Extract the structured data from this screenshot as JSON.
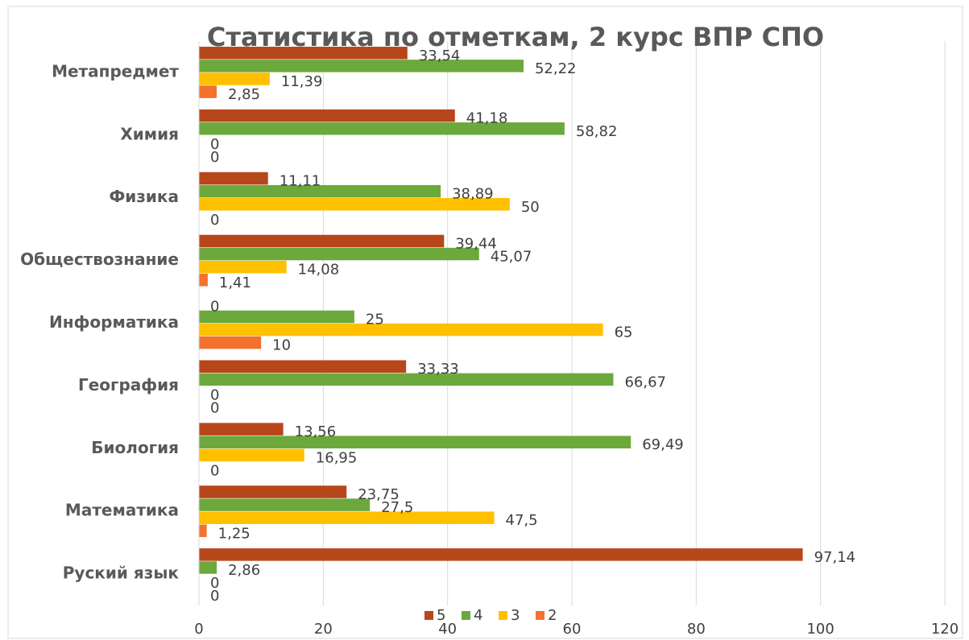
{
  "chart_data": {
    "type": "bar",
    "orientation": "horizontal",
    "title": "Статистика по отметкам, 2 курс ВПР СПО",
    "categories": [
      "Метапредмет",
      "Химия",
      "Физика",
      "Обществознание",
      "Информатика",
      "География",
      "Биология",
      "Математика",
      "Руский язык"
    ],
    "series": [
      {
        "name": "5",
        "color": "#b8461b",
        "values": [
          33.54,
          41.18,
          11.11,
          39.44,
          0,
          33.33,
          13.56,
          23.75,
          97.14
        ],
        "value_labels": [
          "33,54",
          "41,18",
          "11,11",
          "39,44",
          "0",
          "33,33",
          "13,56",
          "23,75",
          "97,14"
        ]
      },
      {
        "name": "4",
        "color": "#6ca83c",
        "values": [
          52.22,
          58.82,
          38.89,
          45.07,
          25,
          66.67,
          69.49,
          27.5,
          2.86
        ],
        "value_labels": [
          "52,22",
          "58,82",
          "38,89",
          "45,07",
          "25",
          "66,67",
          "69,49",
          "27,5",
          "2,86"
        ]
      },
      {
        "name": "3",
        "color": "#ffc000",
        "values": [
          11.39,
          0,
          50,
          14.08,
          65,
          0,
          16.95,
          47.5,
          0
        ],
        "value_labels": [
          "11,39",
          "0",
          "50",
          "14,08",
          "65",
          "0",
          "16,95",
          "47,5",
          "0"
        ]
      },
      {
        "name": "2",
        "color": "#f2722e",
        "values": [
          2.85,
          0,
          0,
          1.41,
          10,
          0,
          0,
          1.25,
          0
        ],
        "value_labels": [
          "2,85",
          "0",
          "0",
          "1,41",
          "10",
          "0",
          "0",
          "1,25",
          "0"
        ]
      }
    ],
    "xlim": [
      0,
      120
    ],
    "xticks": [
      0,
      20,
      40,
      60,
      80,
      100,
      120
    ],
    "grid": true,
    "legend": "bottom"
  }
}
